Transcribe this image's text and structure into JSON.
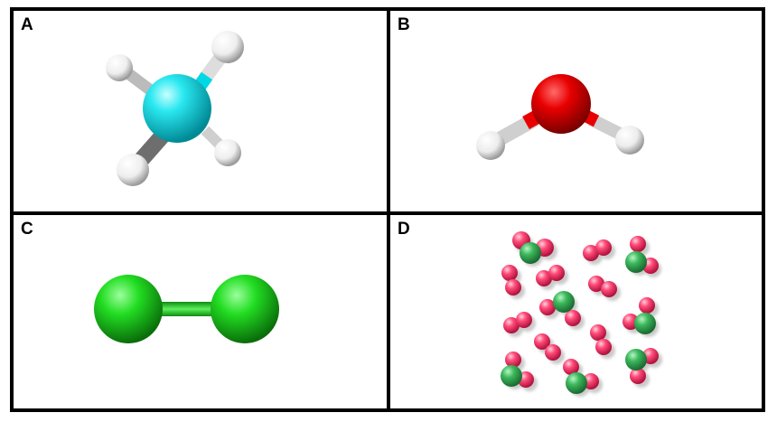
{
  "panels": [
    {
      "label": "A"
    },
    {
      "label": "B"
    },
    {
      "label": "C"
    },
    {
      "label": "D"
    }
  ],
  "colors": {
    "carbon": "#00d8e6",
    "oxygen": "#ee0000",
    "hydrogen": "#ffffff",
    "chlorine": "#22dd22",
    "hcl_hydrogen": "#ff3f6f",
    "hcl_chlorine": "#3cb85c",
    "border": "#000000"
  }
}
